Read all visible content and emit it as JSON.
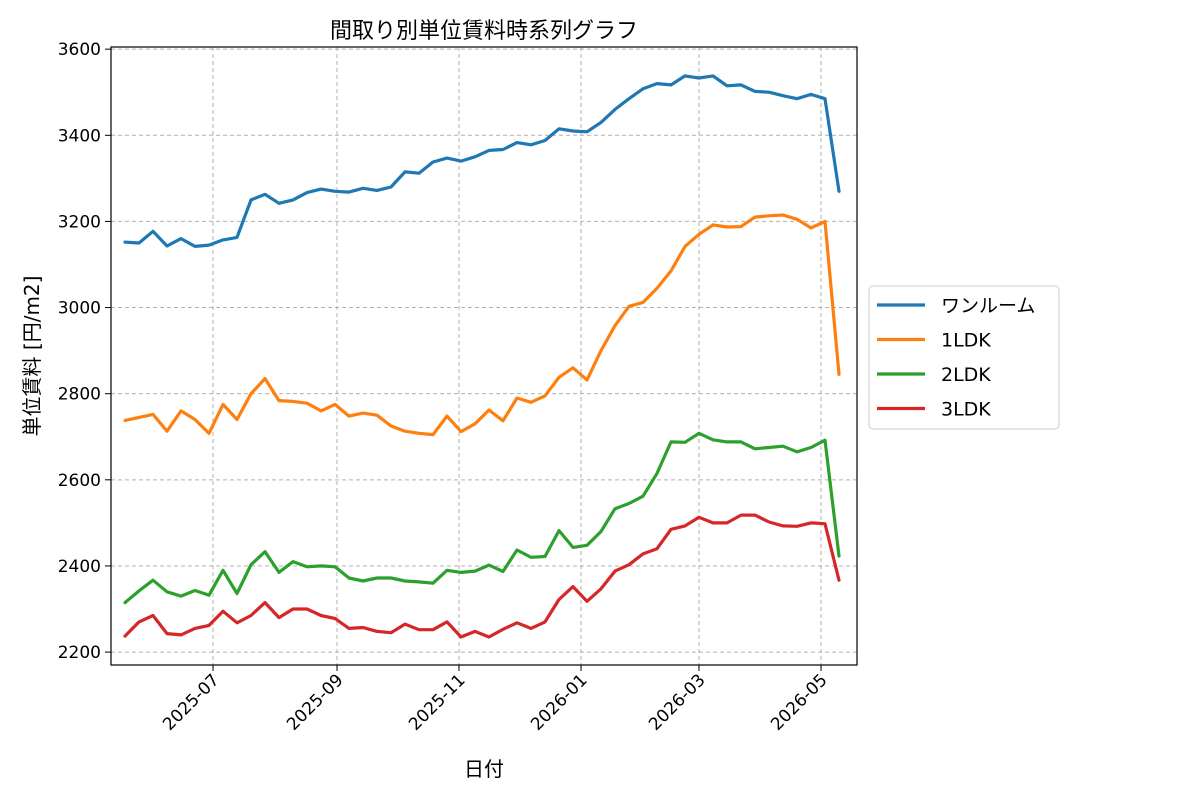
{
  "chart_data": {
    "type": "line",
    "title": "間取り別単位賃料時系列グラフ",
    "xlabel": "日付",
    "ylabel": "単位賃料 [円/m2]",
    "ylim": [
      2170,
      3605
    ],
    "xlim": [
      "2025-05-11",
      "2026-05-19"
    ],
    "yticks": [
      2200,
      2400,
      2600,
      2800,
      3000,
      3200,
      3400,
      3600
    ],
    "xticks": [
      "2025-07",
      "2025-09",
      "2025-11",
      "2026-01",
      "2026-03",
      "2026-05"
    ],
    "x": [
      "2025-05-18",
      "2025-05-25",
      "2025-06-01",
      "2025-06-08",
      "2025-06-15",
      "2025-06-22",
      "2025-06-29",
      "2025-07-06",
      "2025-07-13",
      "2025-07-20",
      "2025-07-27",
      "2025-08-03",
      "2025-08-10",
      "2025-08-17",
      "2025-08-24",
      "2025-08-31",
      "2025-09-07",
      "2025-09-14",
      "2025-09-21",
      "2025-09-28",
      "2025-10-05",
      "2025-10-12",
      "2025-10-19",
      "2025-10-26",
      "2025-11-02",
      "2025-11-09",
      "2025-11-16",
      "2025-11-23",
      "2025-11-30",
      "2025-12-07",
      "2025-12-14",
      "2025-12-21",
      "2025-12-28",
      "2026-01-04",
      "2026-01-11",
      "2026-01-18",
      "2026-01-25",
      "2026-02-01",
      "2026-02-08",
      "2026-02-15",
      "2026-02-22",
      "2026-03-01",
      "2026-03-08",
      "2026-03-15",
      "2026-03-22",
      "2026-03-29",
      "2026-04-05",
      "2026-04-12",
      "2026-04-19",
      "2026-04-26",
      "2026-05-03",
      "2026-05-10"
    ],
    "grid": true,
    "legend_position": "outside-right",
    "series": [
      {
        "name": "ワンルーム",
        "color": "#1f77b4",
        "values": [
          3152,
          3150,
          3177,
          3143,
          3160,
          3142,
          3145,
          3157,
          3163,
          3250,
          3263,
          3242,
          3250,
          3267,
          3275,
          3270,
          3268,
          3277,
          3272,
          3280,
          3315,
          3312,
          3338,
          3347,
          3340,
          3350,
          3365,
          3367,
          3383,
          3378,
          3388,
          3415,
          3410,
          3408,
          3430,
          3460,
          3485,
          3508,
          3520,
          3517,
          3538,
          3533,
          3538,
          3515,
          3517,
          3502,
          3500,
          3492,
          3485,
          3495,
          3485,
          3270
        ]
      },
      {
        "name": "1LDK",
        "color": "#ff7f0e",
        "values": [
          2738,
          2745,
          2752,
          2713,
          2760,
          2740,
          2708,
          2775,
          2740,
          2800,
          2835,
          2784,
          2782,
          2778,
          2760,
          2775,
          2748,
          2755,
          2750,
          2725,
          2713,
          2708,
          2705,
          2748,
          2712,
          2730,
          2762,
          2737,
          2790,
          2780,
          2795,
          2838,
          2860,
          2832,
          2900,
          2958,
          3003,
          3012,
          3045,
          3085,
          3142,
          3170,
          3192,
          3187,
          3188,
          3210,
          3213,
          3215,
          3205,
          3185,
          3200,
          2845
        ]
      },
      {
        "name": "2LDK",
        "color": "#2ca02c",
        "values": [
          2315,
          2342,
          2367,
          2340,
          2330,
          2343,
          2332,
          2390,
          2336,
          2403,
          2433,
          2385,
          2410,
          2398,
          2400,
          2398,
          2372,
          2365,
          2372,
          2372,
          2365,
          2363,
          2360,
          2390,
          2385,
          2388,
          2402,
          2387,
          2437,
          2420,
          2422,
          2482,
          2443,
          2448,
          2480,
          2533,
          2545,
          2562,
          2615,
          2688,
          2687,
          2708,
          2693,
          2688,
          2688,
          2672,
          2675,
          2678,
          2665,
          2675,
          2692,
          2423
        ]
      },
      {
        "name": "3LDK",
        "color": "#d62728",
        "values": [
          2237,
          2270,
          2285,
          2243,
          2240,
          2255,
          2262,
          2295,
          2268,
          2285,
          2315,
          2280,
          2300,
          2300,
          2285,
          2278,
          2255,
          2257,
          2248,
          2245,
          2265,
          2252,
          2252,
          2270,
          2235,
          2248,
          2235,
          2253,
          2268,
          2255,
          2270,
          2322,
          2352,
          2318,
          2347,
          2388,
          2403,
          2428,
          2440,
          2485,
          2493,
          2513,
          2500,
          2500,
          2518,
          2518,
          2502,
          2493,
          2492,
          2500,
          2498,
          2367
        ]
      }
    ]
  }
}
